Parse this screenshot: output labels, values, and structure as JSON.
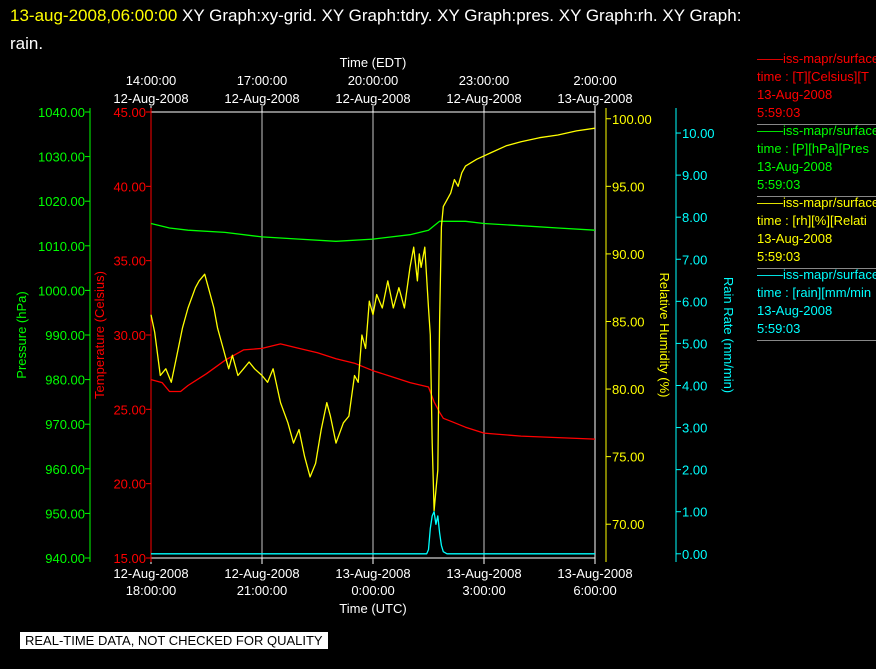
{
  "header": {
    "timestamp": "13-aug-2008,06:00:00",
    "line1_rest": " XY Graph:xy-grid.  XY Graph:tdry.  XY Graph:pres.  XY Graph:rh.  XY Graph:",
    "line2": "rain."
  },
  "banner": "REAL-TIME DATA, NOT CHECKED FOR QUALITY",
  "colors": {
    "temp": "#ff0000",
    "pres": "#00ff00",
    "rh": "#ffff00",
    "rain": "#00ffff",
    "grid": "#c8c8c8"
  },
  "legend": [
    {
      "color": "#ff0000",
      "title": "——iss-mapr/surface",
      "line2": "time : [T][Celsius][T",
      "date": "13-Aug-2008",
      "time": "5:59:03"
    },
    {
      "color": "#00ff00",
      "title": "——iss-mapr/surface",
      "line2": "time : [P][hPa][Pres",
      "date": "13-Aug-2008",
      "time": "5:59:03"
    },
    {
      "color": "#ffff00",
      "title": "——iss-mapr/surface",
      "line2": "time : [rh][%][Relati",
      "date": "13-Aug-2008",
      "time": "5:59:03"
    },
    {
      "color": "#00ffff",
      "title": "——iss-mapr/surface",
      "line2": "time : [rain][mm/min",
      "date": "13-Aug-2008",
      "time": "5:59:03"
    }
  ],
  "chart_data": {
    "type": "line",
    "x_top_label": "Time (EDT)",
    "x_bottom_label": "Time (UTC)",
    "x_range_hours_utc": [
      0,
      12
    ],
    "x_tick_hours": [
      0,
      3,
      6,
      9,
      12
    ],
    "x_ticks_bottom": [
      {
        "l1": "12-Aug-2008",
        "l2": "18:00:00"
      },
      {
        "l1": "12-Aug-2008",
        "l2": "21:00:00"
      },
      {
        "l1": "13-Aug-2008",
        "l2": "0:00:00"
      },
      {
        "l1": "13-Aug-2008",
        "l2": "3:00:00"
      },
      {
        "l1": "13-Aug-2008",
        "l2": "6:00:00"
      }
    ],
    "x_ticks_top": [
      {
        "l1": "14:00:00",
        "l2": "12-Aug-2008"
      },
      {
        "l1": "17:00:00",
        "l2": "12-Aug-2008"
      },
      {
        "l1": "20:00:00",
        "l2": "12-Aug-2008"
      },
      {
        "l1": "23:00:00",
        "l2": "12-Aug-2008"
      },
      {
        "l1": "2:00:00",
        "l2": "13-Aug-2008"
      }
    ],
    "axes": {
      "pres": {
        "label": "Pressure (hPa)",
        "range": [
          940,
          1040
        ],
        "ticks": [
          "940.00",
          "950.00",
          "960.00",
          "970.00",
          "980.00",
          "990.00",
          "1000.00",
          "1010.00",
          "1020.00",
          "1030.00",
          "1040.00"
        ]
      },
      "temp": {
        "label": "Temperature (Celsius)",
        "range": [
          15,
          45
        ],
        "ticks": [
          "15.00",
          "20.00",
          "25.00",
          "30.00",
          "35.00",
          "40.00",
          "45.00"
        ]
      },
      "rh": {
        "label": "Relative Humidity (%)",
        "range": [
          67.5,
          100.5
        ],
        "ticks": [
          "70.00",
          "75.00",
          "80.00",
          "85.00",
          "90.00",
          "95.00",
          "100.00"
        ]
      },
      "rain": {
        "label": "Rain Rate (mm/min)",
        "range": [
          -0.1,
          10.5
        ],
        "ticks": [
          "0.00",
          "1.00",
          "2.00",
          "3.00",
          "4.00",
          "5.00",
          "6.00",
          "7.00",
          "8.00",
          "9.00",
          "10.00"
        ]
      }
    },
    "series": [
      {
        "key": "pres",
        "x": [
          0,
          0.5,
          1,
          2,
          3,
          4,
          5,
          6,
          7,
          7.5,
          7.8,
          8.5,
          9,
          10,
          11,
          12
        ],
        "y": [
          1015,
          1014,
          1013.5,
          1013,
          1012,
          1011.5,
          1011,
          1011.5,
          1012.5,
          1013.5,
          1015.5,
          1015.5,
          1015,
          1014.5,
          1014,
          1013.5
        ]
      },
      {
        "key": "temp",
        "x": [
          0,
          0.3,
          0.5,
          0.8,
          1,
          1.5,
          2,
          2.5,
          3,
          3.5,
          4,
          4.5,
          5,
          5.5,
          6,
          6.5,
          7,
          7.5,
          7.65,
          7.8,
          7.9,
          8.1,
          8.3,
          8.5,
          9,
          9.5,
          10,
          11,
          12
        ],
        "y": [
          27.0,
          26.8,
          26.2,
          26.2,
          26.6,
          27.4,
          28.3,
          29.0,
          29.1,
          29.4,
          29.1,
          28.8,
          28.4,
          28.1,
          27.6,
          27.2,
          26.8,
          26.5,
          25.5,
          24.8,
          24.4,
          24.2,
          24.0,
          23.8,
          23.4,
          23.3,
          23.2,
          23.1,
          23.0
        ]
      },
      {
        "key": "rh",
        "x": [
          0,
          0.1,
          0.25,
          0.4,
          0.55,
          0.7,
          0.85,
          1,
          1.2,
          1.3,
          1.45,
          1.55,
          1.7,
          1.8,
          1.95,
          2.1,
          2.2,
          2.35,
          2.5,
          2.65,
          2.8,
          3,
          3.15,
          3.3,
          3.5,
          3.7,
          3.85,
          4,
          4.15,
          4.3,
          4.45,
          4.6,
          4.75,
          4.85,
          5,
          5.2,
          5.35,
          5.5,
          5.6,
          5.7,
          5.8,
          5.9,
          6,
          6.1,
          6.25,
          6.4,
          6.55,
          6.7,
          6.85,
          7,
          7.1,
          7.2,
          7.25,
          7.3,
          7.4,
          7.5,
          7.55,
          7.6,
          7.65,
          7.7,
          7.75,
          7.8,
          7.85,
          7.9,
          8,
          8.1,
          8.2,
          8.3,
          8.4,
          8.5,
          8.8,
          9.2,
          9.6,
          10,
          10.5,
          11,
          11.5,
          12
        ],
        "y": [
          85.5,
          84.2,
          81,
          81.5,
          80.5,
          82.5,
          84.5,
          86,
          87.5,
          88,
          88.5,
          87.5,
          86,
          84.5,
          83,
          81.5,
          82.5,
          81,
          81.5,
          82,
          81.5,
          81,
          80.5,
          81.5,
          79,
          77.5,
          76,
          77,
          75,
          73.5,
          74.5,
          77,
          79,
          78,
          76,
          77.5,
          78,
          81,
          80.5,
          84,
          83,
          86.5,
          85.5,
          87,
          86,
          88,
          86,
          87.5,
          86,
          89,
          90.5,
          88,
          90,
          89,
          90.5,
          86,
          84,
          76,
          71,
          72.5,
          74,
          85,
          92,
          93.5,
          94,
          94.5,
          95.5,
          95,
          96,
          96.5,
          97,
          97.5,
          98,
          98.3,
          98.6,
          98.8,
          99.1,
          99.3
        ]
      },
      {
        "key": "rain",
        "x": [
          0,
          7.45,
          7.5,
          7.55,
          7.6,
          7.65,
          7.7,
          7.75,
          7.8,
          7.85,
          7.9,
          8,
          12
        ],
        "y": [
          0,
          0,
          0.1,
          0.6,
          0.9,
          1.0,
          0.7,
          0.9,
          0.5,
          0.2,
          0.05,
          0,
          0
        ]
      }
    ]
  }
}
